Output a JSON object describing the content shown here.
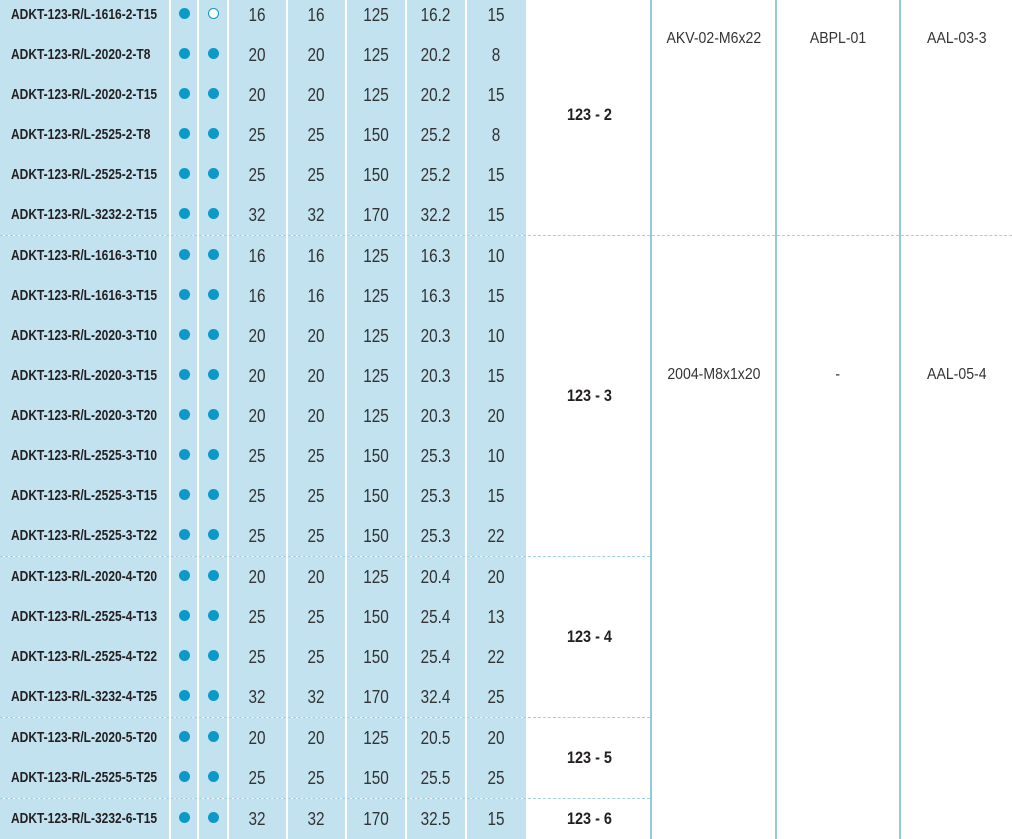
{
  "colors": {
    "column_bg": "#c2e2ef",
    "dot": "#0b99c7",
    "rule": "#8fcbdc"
  },
  "groups": [
    {
      "label": "123 - 2",
      "rows": [
        {
          "code": "ADKT-123-R/L-1616-2-T15",
          "dot1": "filled",
          "dot2": "open",
          "values": [
            "16",
            "16",
            "125",
            "16.2",
            "15"
          ]
        },
        {
          "code": "ADKT-123-R/L-2020-2-T8",
          "dot1": "filled",
          "dot2": "filled",
          "values": [
            "20",
            "20",
            "125",
            "20.2",
            "8"
          ]
        },
        {
          "code": "ADKT-123-R/L-2020-2-T15",
          "dot1": "filled",
          "dot2": "filled",
          "values": [
            "20",
            "20",
            "125",
            "20.2",
            "15"
          ]
        },
        {
          "code": "ADKT-123-R/L-2525-2-T8",
          "dot1": "filled",
          "dot2": "filled",
          "values": [
            "25",
            "25",
            "150",
            "25.2",
            "8"
          ]
        },
        {
          "code": "ADKT-123-R/L-2525-2-T15",
          "dot1": "filled",
          "dot2": "filled",
          "values": [
            "25",
            "25",
            "150",
            "25.2",
            "15"
          ]
        },
        {
          "code": "ADKT-123-R/L-3232-2-T15",
          "dot1": "filled",
          "dot2": "filled",
          "values": [
            "32",
            "32",
            "170",
            "32.2",
            "15"
          ]
        }
      ]
    },
    {
      "label": "123 - 3",
      "rows": [
        {
          "code": "ADKT-123-R/L-1616-3-T10",
          "dot1": "filled",
          "dot2": "filled",
          "values": [
            "16",
            "16",
            "125",
            "16.3",
            "10"
          ]
        },
        {
          "code": "ADKT-123-R/L-1616-3-T15",
          "dot1": "filled",
          "dot2": "filled",
          "values": [
            "16",
            "16",
            "125",
            "16.3",
            "15"
          ]
        },
        {
          "code": "ADKT-123-R/L-2020-3-T10",
          "dot1": "filled",
          "dot2": "filled",
          "values": [
            "20",
            "20",
            "125",
            "20.3",
            "10"
          ]
        },
        {
          "code": "ADKT-123-R/L-2020-3-T15",
          "dot1": "filled",
          "dot2": "filled",
          "values": [
            "20",
            "20",
            "125",
            "20.3",
            "15"
          ]
        },
        {
          "code": "ADKT-123-R/L-2020-3-T20",
          "dot1": "filled",
          "dot2": "filled",
          "values": [
            "20",
            "20",
            "125",
            "20.3",
            "20"
          ]
        },
        {
          "code": "ADKT-123-R/L-2525-3-T10",
          "dot1": "filled",
          "dot2": "filled",
          "values": [
            "25",
            "25",
            "150",
            "25.3",
            "10"
          ]
        },
        {
          "code": "ADKT-123-R/L-2525-3-T15",
          "dot1": "filled",
          "dot2": "filled",
          "values": [
            "25",
            "25",
            "150",
            "25.3",
            "15"
          ]
        },
        {
          "code": "ADKT-123-R/L-2525-3-T22",
          "dot1": "filled",
          "dot2": "filled",
          "values": [
            "25",
            "25",
            "150",
            "25.3",
            "22"
          ]
        }
      ]
    },
    {
      "label": "123 - 4",
      "rows": [
        {
          "code": "ADKT-123-R/L-2020-4-T20",
          "dot1": "filled",
          "dot2": "filled",
          "values": [
            "20",
            "20",
            "125",
            "20.4",
            "20"
          ]
        },
        {
          "code": "ADKT-123-R/L-2525-4-T13",
          "dot1": "filled",
          "dot2": "filled",
          "values": [
            "25",
            "25",
            "150",
            "25.4",
            "13"
          ]
        },
        {
          "code": "ADKT-123-R/L-2525-4-T22",
          "dot1": "filled",
          "dot2": "filled",
          "values": [
            "25",
            "25",
            "150",
            "25.4",
            "22"
          ]
        },
        {
          "code": "ADKT-123-R/L-3232-4-T25",
          "dot1": "filled",
          "dot2": "filled",
          "values": [
            "32",
            "32",
            "170",
            "32.4",
            "25"
          ]
        }
      ]
    },
    {
      "label": "123 - 5",
      "rows": [
        {
          "code": "ADKT-123-R/L-2020-5-T20",
          "dot1": "filled",
          "dot2": "filled",
          "values": [
            "20",
            "20",
            "125",
            "20.5",
            "20"
          ]
        },
        {
          "code": "ADKT-123-R/L-2525-5-T25",
          "dot1": "filled",
          "dot2": "filled",
          "values": [
            "25",
            "25",
            "150",
            "25.5",
            "25"
          ]
        }
      ]
    },
    {
      "label": "123 - 6",
      "rows": [
        {
          "code": "ADKT-123-R/L-3232-6-T15",
          "dot1": "filled",
          "dot2": "filled",
          "values": [
            "32",
            "32",
            "170",
            "32.5",
            "15"
          ]
        }
      ]
    }
  ],
  "accessory_blocks": [
    {
      "row_count": 6,
      "cells": [
        "AKV-02-M6x22",
        "ABPL-01",
        "AAL-03-3"
      ]
    },
    {
      "row_count": 15,
      "cells": [
        "2004-M8x1x20",
        "-",
        "AAL-05-4"
      ]
    }
  ]
}
